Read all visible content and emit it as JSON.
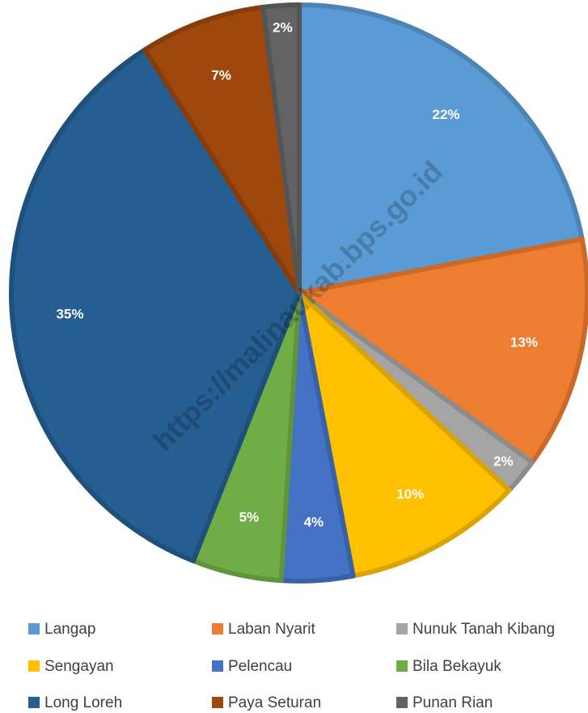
{
  "chart_data": {
    "type": "pie",
    "categories": [
      "Langap",
      "Laban Nyarit",
      "Nunuk Tanah Kibang",
      "Sengayan",
      "Pelencau",
      "Bila Bekayuk",
      "Long Loreh",
      "Paya Seturan",
      "Punan Rian"
    ],
    "values": [
      22,
      13,
      2,
      10,
      4,
      5,
      35,
      7,
      2
    ],
    "value_labels": [
      "22%",
      "13%",
      "2%",
      "10%",
      "4%",
      "5%",
      "35%",
      "7%",
      "2%"
    ],
    "colors": [
      "#5b9bd5",
      "#ed7d31",
      "#a5a5a5",
      "#ffc000",
      "#4472c4",
      "#70ad47",
      "#255e91",
      "#9e480e",
      "#636363"
    ],
    "legend": "bottom",
    "watermark": "https://malinaukab.bps.go.id"
  }
}
